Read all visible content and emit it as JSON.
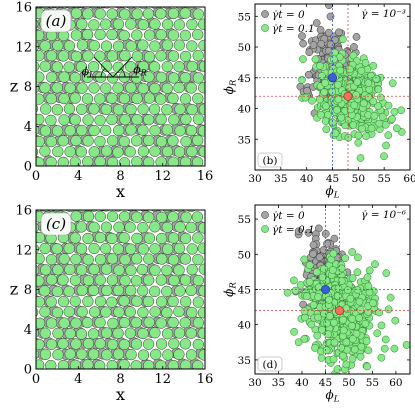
{
  "chart_data": [
    {
      "id": "a",
      "type": "scatter",
      "panel_label": "(a)",
      "xlabel": "x",
      "ylabel": "z",
      "xlim": [
        0,
        16
      ],
      "ylim": [
        0,
        16
      ],
      "xticks": [
        0,
        4,
        8,
        12,
        16
      ],
      "yticks": [
        0,
        4,
        8,
        12,
        16
      ],
      "annotations": [
        "ϕ_L",
        "ϕ_R"
      ],
      "series": [
        {
          "values": [
            [
              0.6,
              14.9
            ],
            [
              3.8,
              14.2
            ],
            [
              5.4,
              10.6
            ],
            [
              1.2,
              7.8
            ],
            [
              6.6,
              6.2
            ],
            [
              10.3,
              4.6
            ],
            [
              3.2,
              1.8
            ],
            [
              12.2,
              1.2
            ],
            [
              14.4,
              8.8
            ],
            [
              8.5,
              12.9
            ],
            [
              0.3,
              3.8
            ]
          ]
        },
        {
          "values": [
            [
              2.1,
              15.2
            ],
            [
              7.4,
              14.4
            ],
            [
              11.2,
              12.1
            ],
            [
              4.6,
              8.5
            ],
            [
              9.8,
              9.3
            ],
            [
              13.6,
              5.4
            ],
            [
              2.5,
              4.2
            ],
            [
              7.8,
              2.3
            ],
            [
              15.1,
              14.0
            ],
            [
              5.9,
              0.6
            ],
            [
              11.0,
              0.8
            ]
          ]
        }
      ]
    },
    {
      "id": "b",
      "type": "scatter",
      "panel_label": "(b)",
      "rate_label": "γ̇ = 10⁻³",
      "xlabel": "ϕ_L",
      "ylabel": "ϕ_R",
      "xlim": [
        30,
        60
      ],
      "ylim": [
        30,
        57
      ],
      "xticks": [
        30,
        35,
        40,
        45,
        50,
        55,
        60
      ],
      "yticks": [
        35,
        40,
        45,
        50,
        55
      ],
      "legend": [
        "γ̇t = 0",
        "γ̇t = 0.1"
      ],
      "legend_position": "top-left",
      "series": [
        {
          "name": "γ̇t = 0",
          "color": "#999999",
          "mean": [
            45,
            45
          ]
        },
        {
          "name": "γ̇t = 0.1",
          "color": "#7ee87e",
          "mean": [
            48,
            42
          ]
        }
      ]
    },
    {
      "id": "c",
      "type": "scatter",
      "panel_label": "(c)",
      "xlabel": "x",
      "ylabel": "z",
      "xlim": [
        0,
        16
      ],
      "ylim": [
        0,
        16
      ],
      "xticks": [
        0,
        4,
        8,
        12,
        16
      ],
      "yticks": [
        0,
        4,
        8,
        12,
        16
      ],
      "series": [
        {
          "values": [
            [
              0.5,
              13.8
            ],
            [
              4.2,
              15.0
            ],
            [
              8.9,
              10.9
            ],
            [
              2.8,
              7.1
            ],
            [
              11.4,
              6.6
            ],
            [
              6.1,
              3.8
            ],
            [
              13.9,
              2.2
            ],
            [
              15.2,
              10.4
            ],
            [
              1.3,
              2.0
            ]
          ]
        },
        {
          "values": [
            [
              2.4,
              11.6
            ],
            [
              6.9,
              12.5
            ],
            [
              12.8,
              13.5
            ],
            [
              5.0,
              6.0
            ],
            [
              9.3,
              4.7
            ],
            [
              14.5,
              7.3
            ],
            [
              3.6,
              0.9
            ],
            [
              10.2,
              1.5
            ],
            [
              8.1,
              15.1
            ]
          ]
        }
      ]
    },
    {
      "id": "d",
      "type": "scatter",
      "panel_label": "(d)",
      "rate_label": "γ̇ = 10⁻⁶",
      "xlabel": "ϕ_L",
      "ylabel": "ϕ_R",
      "xlim": [
        30,
        63
      ],
      "ylim": [
        33,
        57
      ],
      "xticks": [
        30,
        35,
        40,
        45,
        50,
        55,
        60
      ],
      "yticks": [
        35,
        40,
        45,
        50,
        55
      ],
      "legend": [
        "γ̇t = 0",
        "γ̇t = 0.1"
      ],
      "legend_position": "top-left",
      "series": [
        {
          "name": "γ̇t = 0",
          "color": "#999999",
          "mean": [
            45,
            45
          ]
        },
        {
          "name": "γ̇t = 0.1",
          "color": "#7ee87e",
          "mean": [
            48,
            42
          ]
        }
      ]
    }
  ],
  "colors": {
    "grey": "#a3a3a3",
    "green": "#86e886",
    "blue_mark": "#3b5fd9",
    "red_mark": "#f0705a",
    "blue_line": "#3a5fd0",
    "red_line": "#e04040"
  }
}
